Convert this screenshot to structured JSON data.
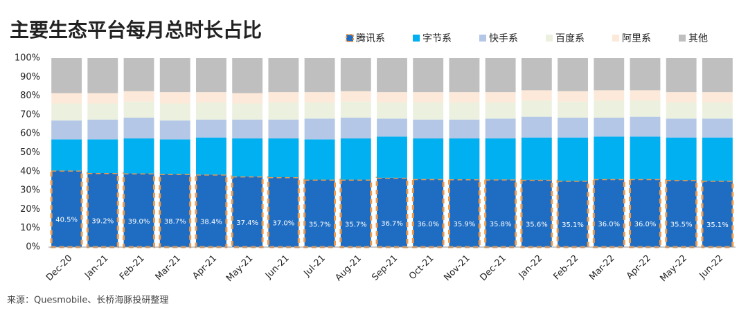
{
  "chart_data": {
    "type": "stacked_bar",
    "title": "主要生态平台每月总时长占比",
    "source": "来源：Quesmobile、长桥海豚投研整理",
    "categories": [
      "Dec-20",
      "Jan-21",
      "Feb-21",
      "Mar-21",
      "Apr-21",
      "May-21",
      "Jun-21",
      "Jul-21",
      "Aug-21",
      "Sep-21",
      "Oct-21",
      "Nov-21",
      "Dec-21",
      "Jan-22",
      "Feb-22",
      "Mar-22",
      "Apr-22",
      "May-22",
      "Jun-22"
    ],
    "series": [
      {
        "name": "腾讯系",
        "color": "#1f6dc2",
        "border": "#f09a4a",
        "values": [
          40.5,
          39.2,
          39.0,
          38.7,
          38.4,
          37.4,
          37.0,
          35.7,
          35.7,
          36.7,
          36.0,
          35.9,
          35.8,
          35.6,
          35.1,
          36.0,
          36.0,
          35.5,
          35.1
        ],
        "value_labels": [
          "40.5%",
          "39.2%",
          "39.0%",
          "38.7%",
          "38.4%",
          "37.4%",
          "37.0%",
          "35.7%",
          "35.7%",
          "36.7%",
          "36.0%",
          "35.9%",
          "35.8%",
          "35.6%",
          "35.1%",
          "36.0%",
          "36.0%",
          "35.5%",
          "35.1%"
        ]
      },
      {
        "name": "字节系",
        "color": "#00b0f0",
        "values": [
          16.5,
          17.8,
          18.5,
          18.3,
          19.6,
          20.1,
          20.5,
          21.3,
          21.8,
          21.8,
          21.5,
          21.6,
          21.7,
          22.4,
          22.9,
          22.5,
          22.5,
          22.5,
          22.9
        ]
      },
      {
        "name": "快手系",
        "color": "#b4c7e7",
        "values": [
          10,
          10.5,
          11,
          10,
          9.5,
          10,
          10,
          11,
          11,
          9.5,
          10,
          10,
          10.5,
          11,
          10.5,
          10,
          10.5,
          10,
          10
        ]
      },
      {
        "name": "百度系",
        "color": "#ebf1de",
        "values": [
          9,
          8.5,
          8.5,
          9,
          9,
          8.5,
          9,
          8.5,
          8.5,
          8.5,
          9,
          9,
          8.5,
          8.5,
          8.5,
          9,
          8.5,
          8.5,
          8.5
        ]
      },
      {
        "name": "阿里系",
        "color": "#fde9d9",
        "values": [
          5.5,
          5.5,
          5.5,
          6,
          5.5,
          5.5,
          5.5,
          5.5,
          5.5,
          5.5,
          5.5,
          5.5,
          5.5,
          5.5,
          5.5,
          5.5,
          5.5,
          5.5,
          5.5
        ]
      },
      {
        "name": "其他",
        "color": "#bfbfbf",
        "values": [
          18.5,
          18.5,
          17.5,
          18,
          18,
          18.5,
          18,
          18,
          17.5,
          18,
          18,
          18,
          18,
          17,
          17.5,
          17,
          17,
          18,
          18
        ]
      }
    ],
    "ylim": [
      0,
      100
    ],
    "yticks": [
      {
        "value": 0,
        "label": "0%"
      },
      {
        "value": 10,
        "label": "10%"
      },
      {
        "value": 20,
        "label": "20%"
      },
      {
        "value": 30,
        "label": "30%"
      },
      {
        "value": 40,
        "label": "40%"
      },
      {
        "value": 50,
        "label": "50%"
      },
      {
        "value": 60,
        "label": "60%"
      },
      {
        "value": 70,
        "label": "70%"
      },
      {
        "value": 80,
        "label": "80%"
      },
      {
        "value": 90,
        "label": "90%"
      },
      {
        "value": 100,
        "label": "100%"
      }
    ],
    "grid": false
  }
}
